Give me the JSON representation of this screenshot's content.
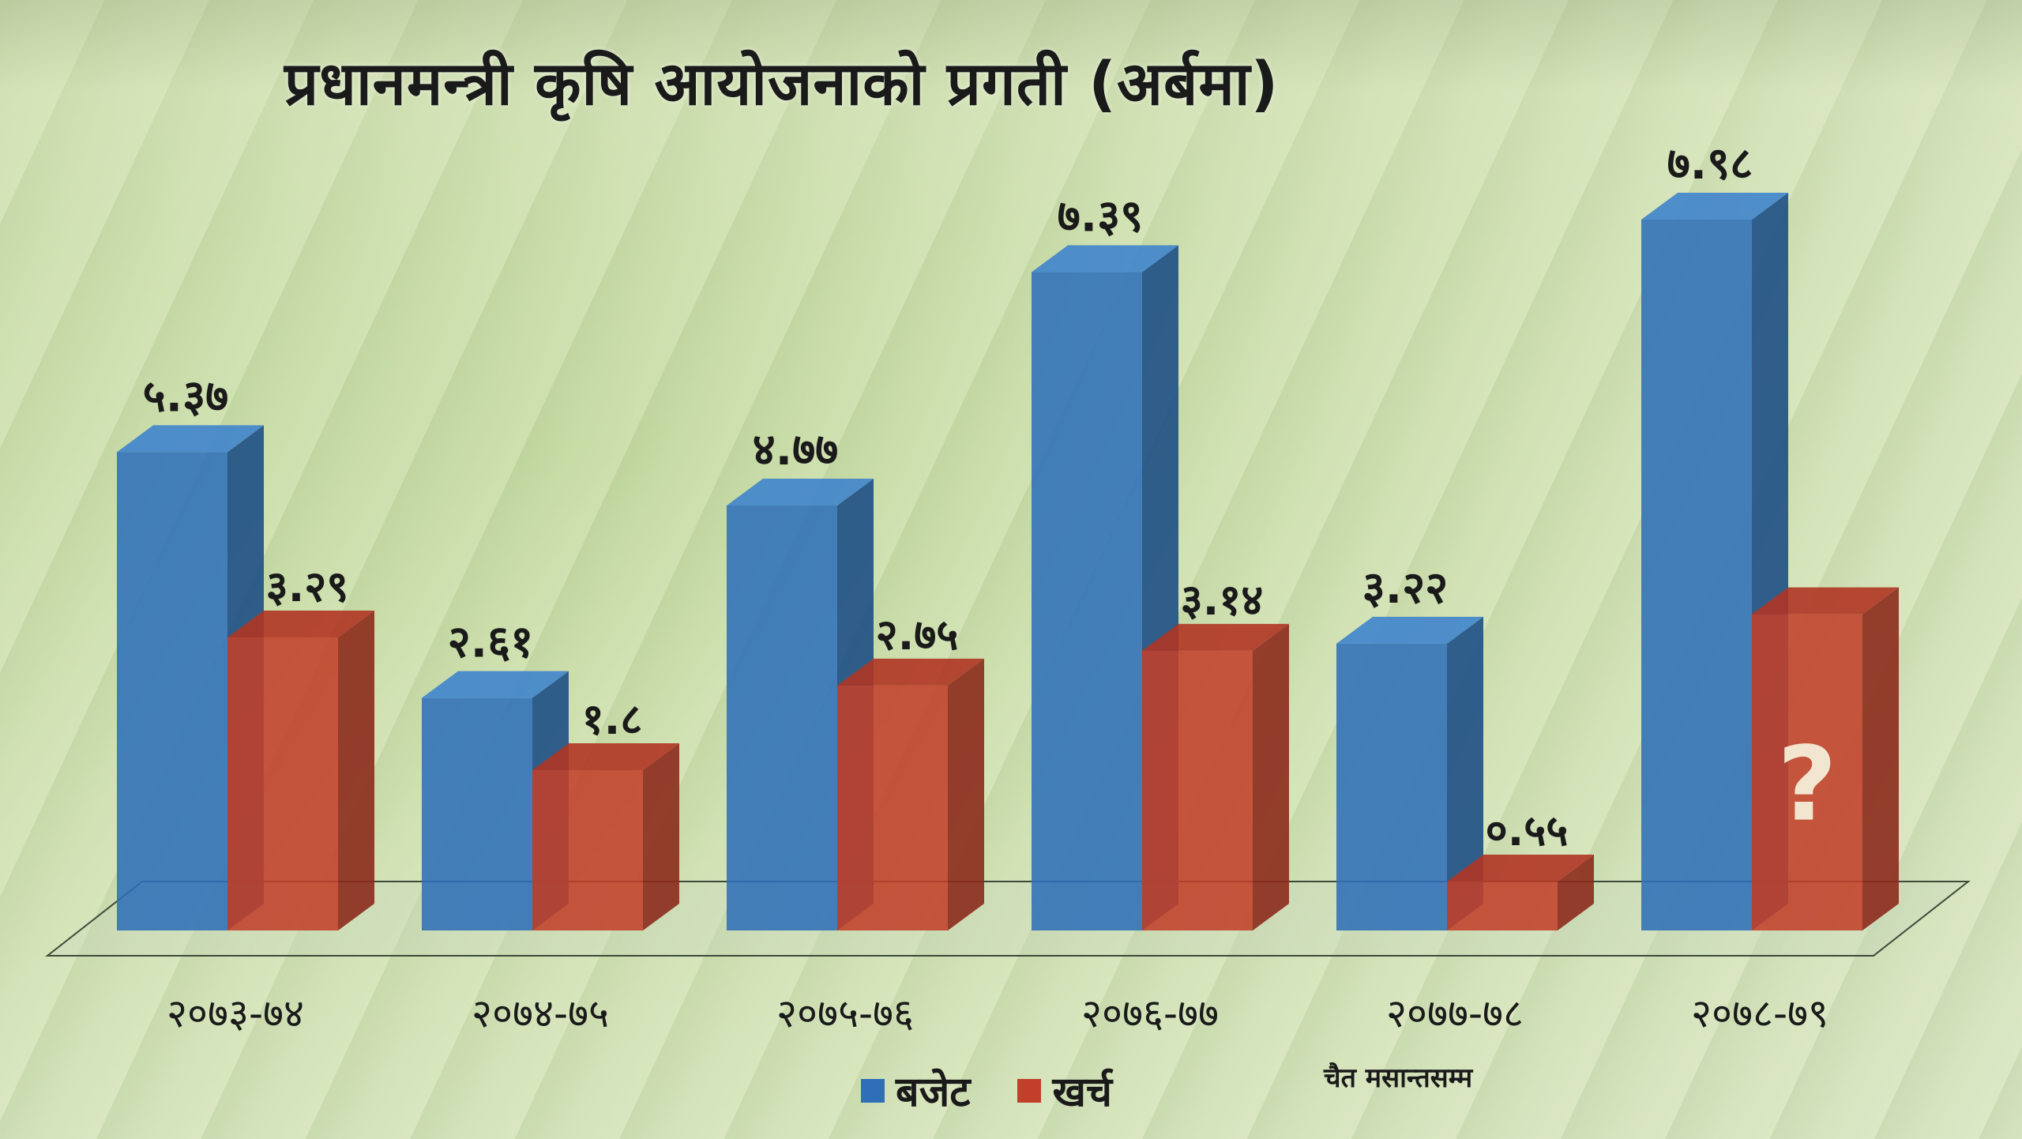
{
  "title": "प्रधानमन्त्री कृषि आयोजनाको प्रगती (अर्बमा)",
  "legend": {
    "budget": "बजेट",
    "expense": "खर्च"
  },
  "note": "चैत मसान्तसम्म",
  "unknown_marker": "?",
  "colors": {
    "budget": "#2f6fb8",
    "budget_dark": "#1e4f85",
    "budget_top": "#3f84cc",
    "expense": "#c2402a",
    "expense_dark": "#8c2a1c",
    "expense_top": "#b03524"
  },
  "chart_data": {
    "type": "bar",
    "title": "प्रधानमन्त्री कृषि आयोजनाको प्रगती (अर्बमा)",
    "categories": [
      "२०७३-७४",
      "२०७४-७५",
      "२०७५-७६",
      "२०७६-७७",
      "२०७७-७८",
      "२०७८-७९"
    ],
    "series": [
      {
        "name": "बजेट",
        "values": [
          5.37,
          2.61,
          4.77,
          7.39,
          3.22,
          7.98
        ],
        "labels": [
          "५.३७",
          "२.६१",
          "४.७७",
          "७.३९",
          "३.२२",
          "७.९८"
        ]
      },
      {
        "name": "खर्च",
        "values": [
          3.29,
          1.8,
          2.75,
          3.14,
          0.55,
          null
        ],
        "labels": [
          "३.२९",
          "१.८",
          "२.७५",
          "३.१४",
          "०.५५",
          null
        ]
      }
    ],
    "xlabel": "",
    "ylabel": "",
    "ylim": [
      0,
      7.98
    ],
    "legend_position": "bottom-center",
    "grid": false
  }
}
